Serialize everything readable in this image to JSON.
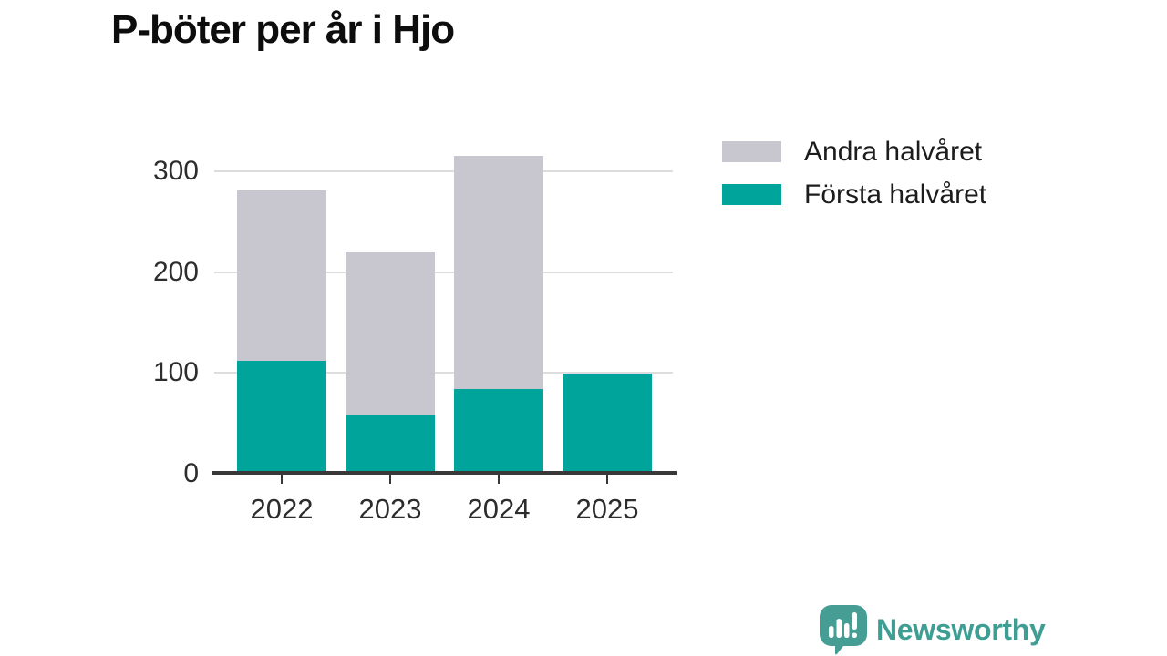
{
  "title": "P-böter per år i Hjo",
  "brand": {
    "name": "Newsworthy",
    "color": "#3f9e93"
  },
  "colors": {
    "first_half": "#00a49b",
    "second_half": "#c8c6cf",
    "axis": "#383838",
    "gridline": "#dddddd",
    "axis_text": "#2d2d2d",
    "title_text": "#0d0d0d"
  },
  "chart_data": {
    "type": "bar",
    "stacked": true,
    "title": "P-böter per år i Hjo",
    "xlabel": "",
    "ylabel": "",
    "categories": [
      "2022",
      "2023",
      "2024",
      "2025"
    ],
    "series": [
      {
        "name": "Första halvåret",
        "color": "#00a49b",
        "values": [
          112,
          58,
          84,
          99
        ]
      },
      {
        "name": "Andra halvåret",
        "color": "#c8c6cf",
        "values": [
          169,
          162,
          231,
          0
        ]
      }
    ],
    "totals": [
      281,
      220,
      315,
      99
    ],
    "yticks": [
      0,
      100,
      200,
      300
    ],
    "ylim": [
      0,
      340
    ],
    "grid": true,
    "legend_position": "top-right",
    "legend_order_top_to_bottom": [
      "Andra halvåret",
      "Första halvåret"
    ]
  }
}
